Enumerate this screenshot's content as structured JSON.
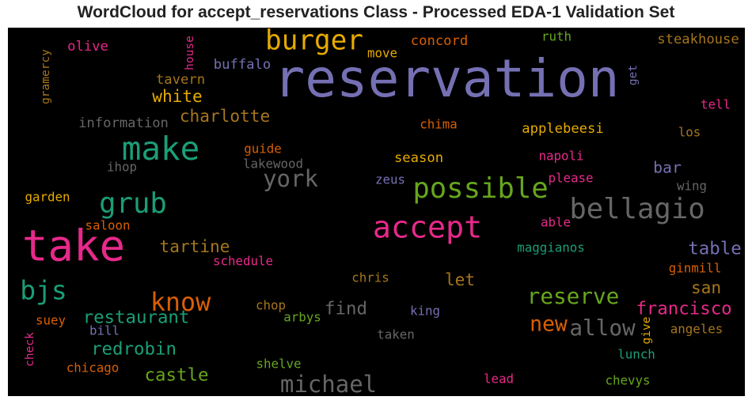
{
  "chart_data": {
    "type": "wordcloud",
    "title": "WordCloud for accept_reservations Class - Processed EDA-1 Validation Set",
    "background": "#000000",
    "words": [
      {
        "text": "reservation",
        "weight": 1.0,
        "color": "#7570b3"
      },
      {
        "text": "take",
        "weight": 0.82,
        "color": "#e7298a"
      },
      {
        "text": "burger",
        "weight": 0.52,
        "color": "#e6ab02"
      },
      {
        "text": "make",
        "weight": 0.62,
        "color": "#1b9e77"
      },
      {
        "text": "accept",
        "weight": 0.58,
        "color": "#e7298a"
      },
      {
        "text": "possible",
        "weight": 0.54,
        "color": "#66a61e"
      },
      {
        "text": "grub",
        "weight": 0.54,
        "color": "#1b9e77"
      },
      {
        "text": "bellagio",
        "weight": 0.54,
        "color": "#666666"
      },
      {
        "text": "bjs",
        "weight": 0.5,
        "color": "#1b9e77"
      },
      {
        "text": "know",
        "weight": 0.48,
        "color": "#d95f02"
      },
      {
        "text": "york",
        "weight": 0.44,
        "color": "#666666"
      },
      {
        "text": "reserve",
        "weight": 0.42,
        "color": "#66a61e"
      },
      {
        "text": "allow",
        "weight": 0.42,
        "color": "#666666"
      },
      {
        "text": "new",
        "weight": 0.4,
        "color": "#d95f02"
      },
      {
        "text": "michael",
        "weight": 0.44,
        "color": "#666666"
      },
      {
        "text": "restaurant",
        "weight": 0.34,
        "color": "#1b9e77"
      },
      {
        "text": "redrobin",
        "weight": 0.34,
        "color": "#1b9e77"
      },
      {
        "text": "castle",
        "weight": 0.34,
        "color": "#66a61e"
      },
      {
        "text": "find",
        "weight": 0.34,
        "color": "#666666"
      },
      {
        "text": "francisco",
        "weight": 0.34,
        "color": "#e7298a"
      },
      {
        "text": "table",
        "weight": 0.34,
        "color": "#7570b3"
      },
      {
        "text": "san",
        "weight": 0.32,
        "color": "#a6761d"
      },
      {
        "text": "white",
        "weight": 0.32,
        "color": "#e6ab02"
      },
      {
        "text": "charlotte",
        "weight": 0.32,
        "color": "#a6761d"
      },
      {
        "text": "tartine",
        "weight": 0.32,
        "color": "#a6761d"
      },
      {
        "text": "let",
        "weight": 0.32,
        "color": "#a6761d"
      },
      {
        "text": "bar",
        "weight": 0.3,
        "color": "#7570b3"
      },
      {
        "text": "season",
        "weight": 0.26,
        "color": "#e6ab02"
      },
      {
        "text": "applebeesi",
        "weight": 0.26,
        "color": "#e6ab02"
      },
      {
        "text": "concord",
        "weight": 0.26,
        "color": "#d95f02"
      },
      {
        "text": "steakhouse",
        "weight": 0.26,
        "color": "#a6761d"
      },
      {
        "text": "olive",
        "weight": 0.26,
        "color": "#e7298a"
      },
      {
        "text": "information",
        "weight": 0.26,
        "color": "#666666"
      },
      {
        "text": "buffalo",
        "weight": 0.26,
        "color": "#7570b3"
      },
      {
        "text": "tavern",
        "weight": 0.26,
        "color": "#a6761d"
      },
      {
        "text": "move",
        "weight": 0.24,
        "color": "#e6ab02"
      },
      {
        "text": "ruth",
        "weight": 0.24,
        "color": "#66a61e"
      },
      {
        "text": "tell",
        "weight": 0.24,
        "color": "#e7298a"
      },
      {
        "text": "los",
        "weight": 0.24,
        "color": "#a6761d"
      },
      {
        "text": "chima",
        "weight": 0.24,
        "color": "#d95f02"
      },
      {
        "text": "napoli",
        "weight": 0.24,
        "color": "#e7298a"
      },
      {
        "text": "guide",
        "weight": 0.24,
        "color": "#d95f02"
      },
      {
        "text": "lakewood",
        "weight": 0.24,
        "color": "#666666"
      },
      {
        "text": "ihop",
        "weight": 0.24,
        "color": "#666666"
      },
      {
        "text": "zeus",
        "weight": 0.24,
        "color": "#7570b3"
      },
      {
        "text": "please",
        "weight": 0.24,
        "color": "#e7298a"
      },
      {
        "text": "wing",
        "weight": 0.24,
        "color": "#666666"
      },
      {
        "text": "garden",
        "weight": 0.24,
        "color": "#e6ab02"
      },
      {
        "text": "saloon",
        "weight": 0.24,
        "color": "#d95f02"
      },
      {
        "text": "able",
        "weight": 0.24,
        "color": "#e7298a"
      },
      {
        "text": "maggianos",
        "weight": 0.24,
        "color": "#1b9e77"
      },
      {
        "text": "schedule",
        "weight": 0.24,
        "color": "#e7298a"
      },
      {
        "text": "chris",
        "weight": 0.24,
        "color": "#a6761d"
      },
      {
        "text": "ginmill",
        "weight": 0.24,
        "color": "#d95f02"
      },
      {
        "text": "chop",
        "weight": 0.24,
        "color": "#a6761d"
      },
      {
        "text": "arbys",
        "weight": 0.24,
        "color": "#66a61e"
      },
      {
        "text": "king",
        "weight": 0.24,
        "color": "#7570b3"
      },
      {
        "text": "suey",
        "weight": 0.24,
        "color": "#d95f02"
      },
      {
        "text": "bill",
        "weight": 0.24,
        "color": "#7570b3"
      },
      {
        "text": "taken",
        "weight": 0.24,
        "color": "#666666"
      },
      {
        "text": "angeles",
        "weight": 0.24,
        "color": "#a6761d"
      },
      {
        "text": "lunch",
        "weight": 0.24,
        "color": "#1b9e77"
      },
      {
        "text": "chicago",
        "weight": 0.24,
        "color": "#d95f02"
      },
      {
        "text": "shelve",
        "weight": 0.24,
        "color": "#66a61e"
      },
      {
        "text": "lead",
        "weight": 0.24,
        "color": "#e7298a"
      },
      {
        "text": "chevys",
        "weight": 0.24,
        "color": "#66a61e"
      },
      {
        "text": "gramercy",
        "weight": 0.22,
        "color": "#a6761d",
        "vertical": true
      },
      {
        "text": "house",
        "weight": 0.22,
        "color": "#e7298a",
        "vertical": true
      },
      {
        "text": "get",
        "weight": 0.22,
        "color": "#7570b3",
        "vertical": true
      },
      {
        "text": "check",
        "weight": 0.22,
        "color": "#e7298a",
        "vertical": true
      },
      {
        "text": "give",
        "weight": 0.22,
        "color": "#e6ab02",
        "vertical": true
      }
    ]
  }
}
